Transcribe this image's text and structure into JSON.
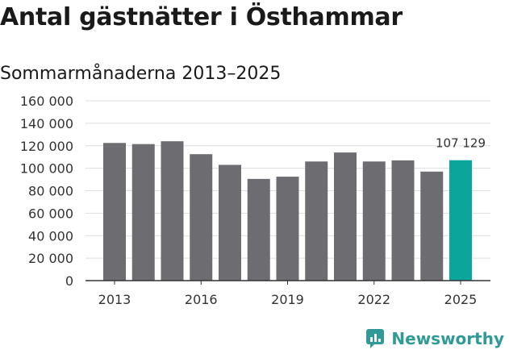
{
  "title": "Antal gästnätter i Östhammar",
  "subtitle": "Sommarmånaderna 2013–2025",
  "brand": "Newsworthy",
  "colors": {
    "bar": "#6d6c71",
    "highlight": "#0aa59b",
    "grid": "#dddddd",
    "brand": "#2f9a96"
  },
  "chart_data": {
    "type": "bar",
    "categories": [
      "2013",
      "2014",
      "2015",
      "2016",
      "2017",
      "2018",
      "2019",
      "2020",
      "2021",
      "2022",
      "2023",
      "2024",
      "2025"
    ],
    "values": [
      122500,
      121500,
      124000,
      112500,
      103000,
      90500,
      92500,
      106000,
      114000,
      106000,
      107000,
      97000,
      107129
    ],
    "highlight_index": 12,
    "highlight_label": "107 129",
    "ylim": [
      0,
      160000
    ],
    "yticks": [
      0,
      20000,
      40000,
      60000,
      80000,
      100000,
      120000,
      140000,
      160000
    ],
    "ytick_labels": [
      "0",
      "20 000",
      "40 000",
      "60 000",
      "80 000",
      "100 000",
      "120 000",
      "140 000",
      "160 000"
    ],
    "xtick_labels": [
      "2013",
      "2016",
      "2019",
      "2022",
      "2025"
    ],
    "xtick_indices": [
      0,
      3,
      6,
      9,
      12
    ],
    "grid": true,
    "xlabel": "",
    "ylabel": ""
  }
}
